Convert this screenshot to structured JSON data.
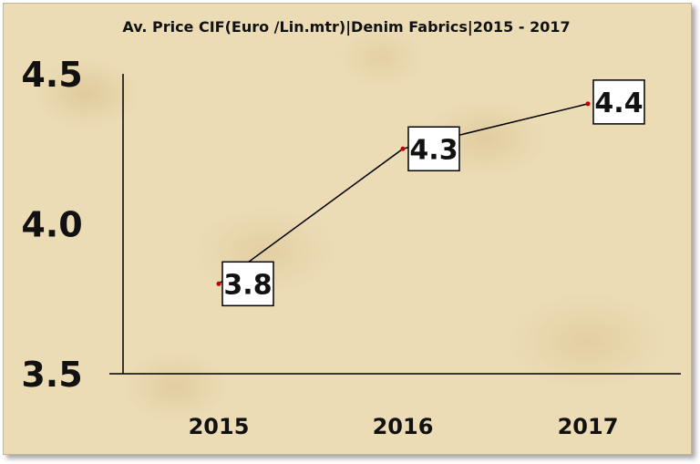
{
  "chart_data": {
    "type": "line",
    "title": "Av. Price CIF(Euro /Lin.mtr)|Denim Fabrics|2015 - 2017",
    "xlabel": "",
    "ylabel": "",
    "categories": [
      "2015",
      "2016",
      "2017"
    ],
    "values": [
      3.8,
      4.25,
      4.4
    ],
    "data_labels": [
      "3.8",
      "4.3",
      "4.4"
    ],
    "y_tick_labels": [
      "4.5",
      "4.0",
      "3.5"
    ],
    "y_tick_values": [
      4.5,
      4.0,
      3.5
    ],
    "ylim": [
      3.5,
      4.5
    ],
    "grid": false,
    "legend": "none",
    "line_color": "#000000",
    "marker_color": "#c00000"
  }
}
